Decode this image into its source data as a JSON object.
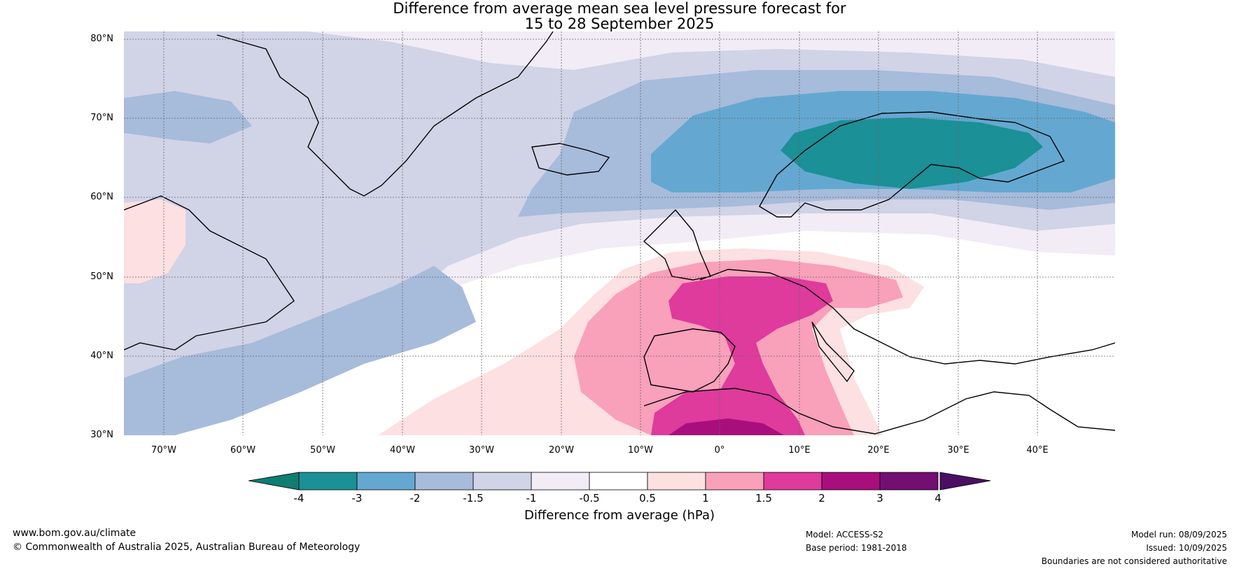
{
  "title_line1": "Difference from average mean sea level pressure forecast for",
  "title_line2": "15 to 28 September 2025",
  "lat_labels": [
    "80°N",
    "70°N",
    "60°N",
    "50°N",
    "40°N",
    "30°N"
  ],
  "lon_labels": [
    "70°W",
    "60°W",
    "50°W",
    "40°W",
    "30°W",
    "20°W",
    "10°W",
    "0°",
    "10°E",
    "20°E",
    "30°E",
    "40°E"
  ],
  "colorbar": {
    "ticks": [
      "-4",
      "-3",
      "-2",
      "-1.5",
      "-1",
      "-0.5",
      "0.5",
      "1",
      "1.5",
      "2",
      "3",
      "4"
    ],
    "colors": [
      "#1b9096",
      "#64a8d1",
      "#a7bbdb",
      "#d1d3e6",
      "#f1ecf6",
      "#ffffff",
      "#fde0e1",
      "#f9a0bb",
      "#de3b9c",
      "#a90f7c",
      "#730e73"
    ],
    "low_extend_color": "#0f7d70",
    "high_extend_color": "#4a0f63",
    "label": "Difference from average (hPa)"
  },
  "footer": {
    "website": "www.bom.gov.au/climate",
    "copyright": "© Commonwealth of Australia 2025, Australian Bureau of Meteorology",
    "model": "Model: ACCESS-S2",
    "base_period": "Base period: 1981-2018",
    "model_run": "Model run: 08/09/2025",
    "issued": "Issued: 10/09/2025",
    "boundaries_note": "Boundaries are not considered authoritative"
  }
}
